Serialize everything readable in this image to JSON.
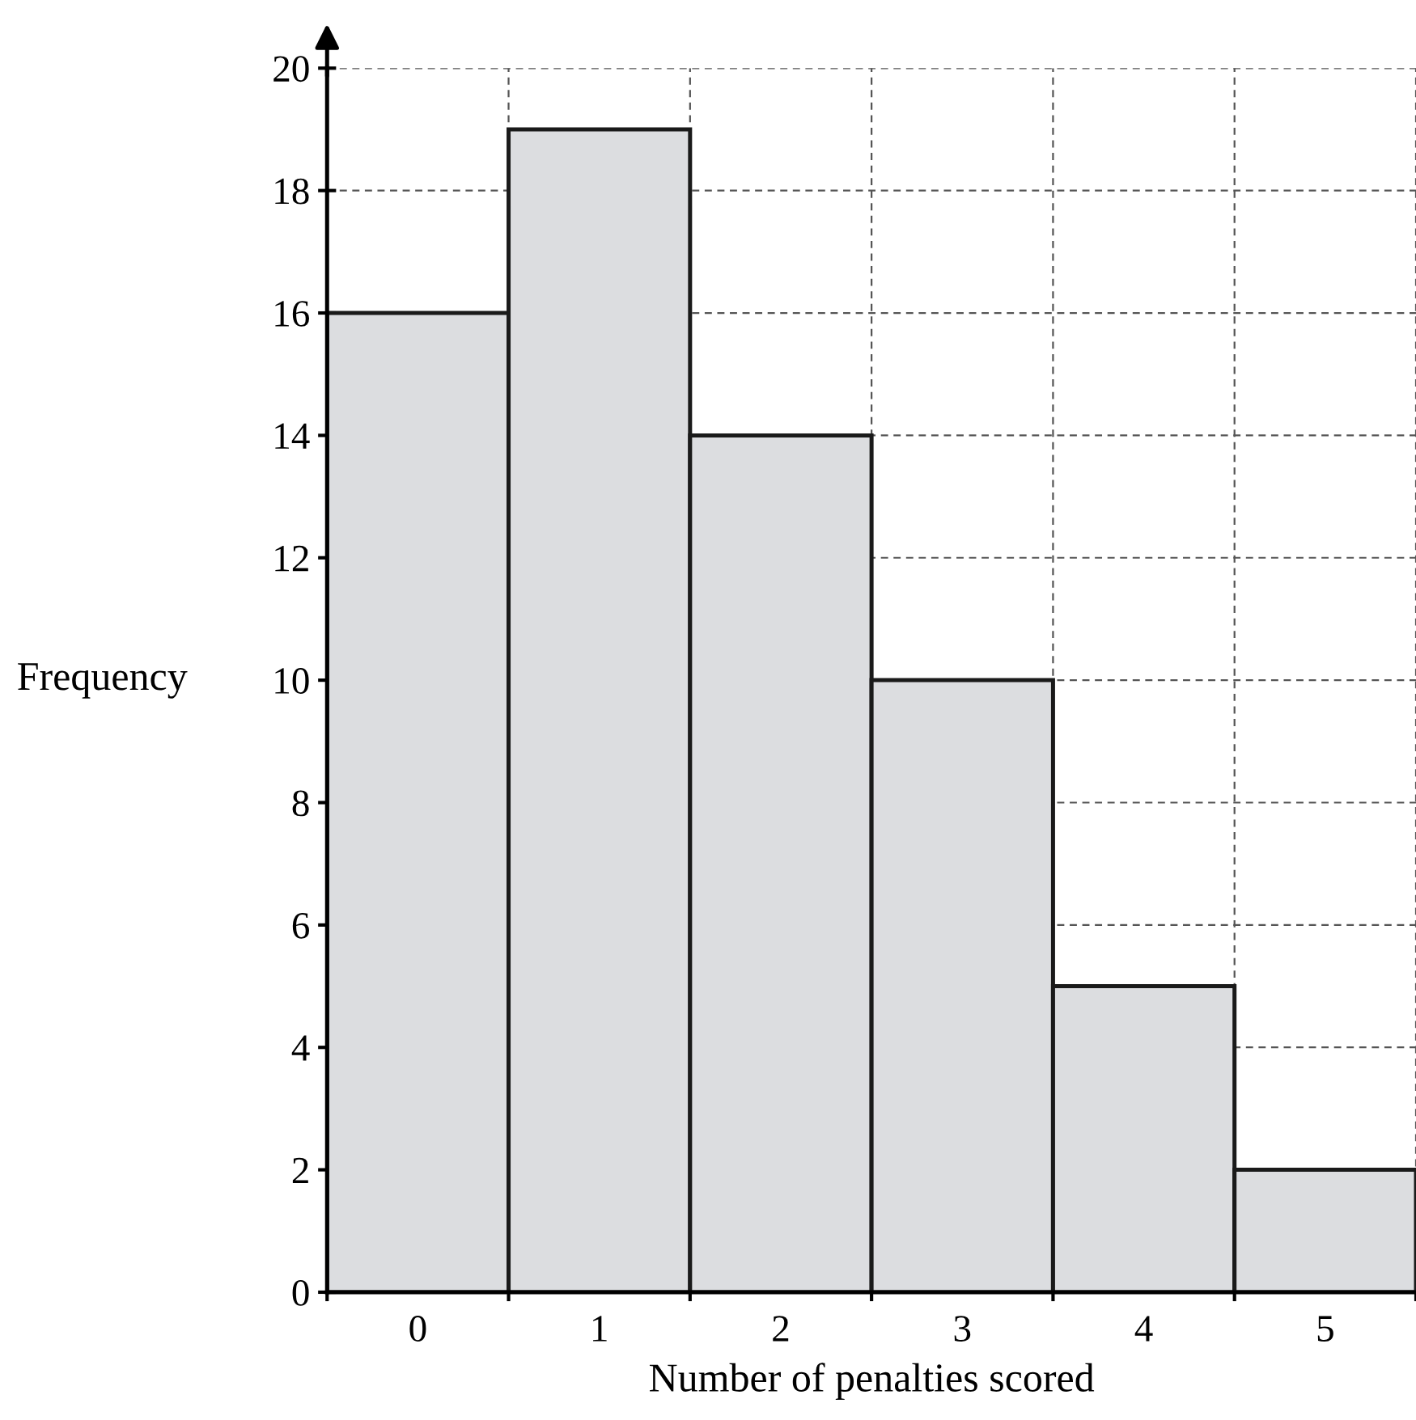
{
  "chart_data": {
    "type": "bar",
    "categories": [
      "0",
      "1",
      "2",
      "3",
      "4",
      "5"
    ],
    "values": [
      16,
      19,
      14,
      10,
      5,
      2
    ],
    "color": "#dcdde0",
    "xlabel": "Number of penalties scored",
    "ylabel": "Frequency",
    "ylim": [
      0,
      20
    ],
    "yticks": [
      0,
      2,
      4,
      6,
      8,
      10,
      12,
      14,
      16,
      18,
      20
    ],
    "grid": true
  }
}
